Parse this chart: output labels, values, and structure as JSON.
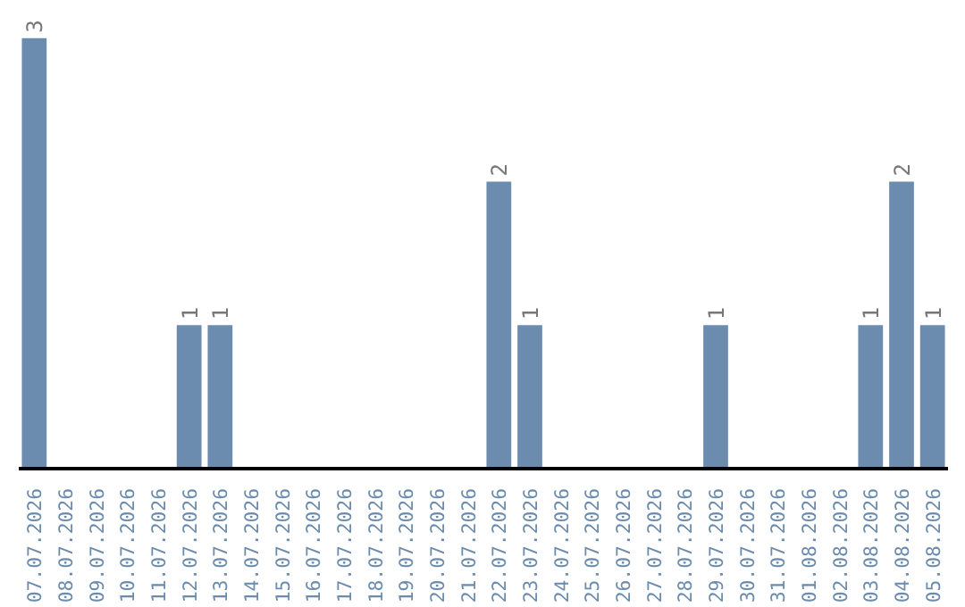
{
  "chart_data": {
    "type": "bar",
    "categories": [
      "07.07.2026",
      "08.07.2026",
      "09.07.2026",
      "10.07.2026",
      "11.07.2026",
      "12.07.2026",
      "13.07.2026",
      "14.07.2026",
      "15.07.2026",
      "16.07.2026",
      "17.07.2026",
      "18.07.2026",
      "19.07.2026",
      "20.07.2026",
      "21.07.2026",
      "22.07.2026",
      "23.07.2026",
      "24.07.2026",
      "25.07.2026",
      "26.07.2026",
      "27.07.2026",
      "28.07.2026",
      "29.07.2026",
      "30.07.2026",
      "31.07.2026",
      "01.08.2026",
      "02.08.2026",
      "03.08.2026",
      "04.08.2026",
      "05.08.2026"
    ],
    "values": [
      3,
      0,
      0,
      0,
      0,
      1,
      1,
      0,
      0,
      0,
      0,
      0,
      0,
      0,
      0,
      2,
      1,
      0,
      0,
      0,
      0,
      0,
      1,
      0,
      0,
      0,
      0,
      1,
      2,
      1
    ],
    "value_labels": [
      "3",
      null,
      null,
      null,
      null,
      "1",
      "1",
      null,
      null,
      null,
      null,
      null,
      null,
      null,
      null,
      "2",
      "1",
      null,
      null,
      null,
      null,
      null,
      "1",
      null,
      null,
      null,
      null,
      "1",
      "2",
      "1"
    ],
    "color": "#6b8cae",
    "tick_labels": "x",
    "grid": false
  }
}
